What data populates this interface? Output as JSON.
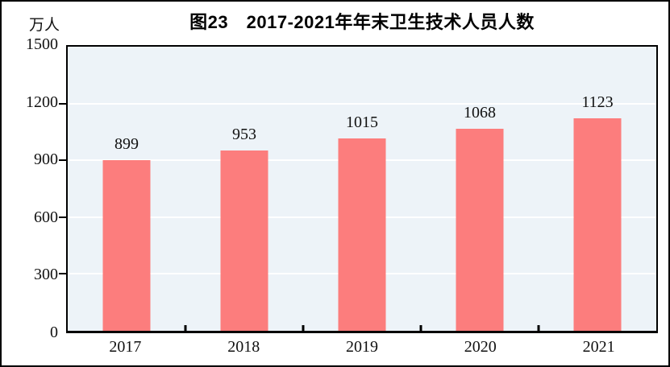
{
  "chart_data": {
    "type": "bar",
    "title": "图23　2017-2021年年末卫生技术人员人数",
    "unit_label": "万人",
    "categories": [
      "2017",
      "2018",
      "2019",
      "2020",
      "2021"
    ],
    "values": [
      899,
      953,
      1015,
      1068,
      1123
    ],
    "data_labels": [
      "899",
      "953",
      "1015",
      "1068",
      "1123"
    ],
    "xlabel": "",
    "ylabel": "万人",
    "ylim": [
      0,
      1500
    ],
    "y_ticks": [
      0,
      300,
      600,
      900,
      1200,
      1500
    ],
    "grid": "horizontal",
    "legend_position": "none",
    "colors": {
      "bar": "#FC7D7D",
      "plot_background": "#EDF3F8",
      "gridline": "#FFFFFF",
      "axis": "#000000",
      "text": "#111111"
    }
  }
}
